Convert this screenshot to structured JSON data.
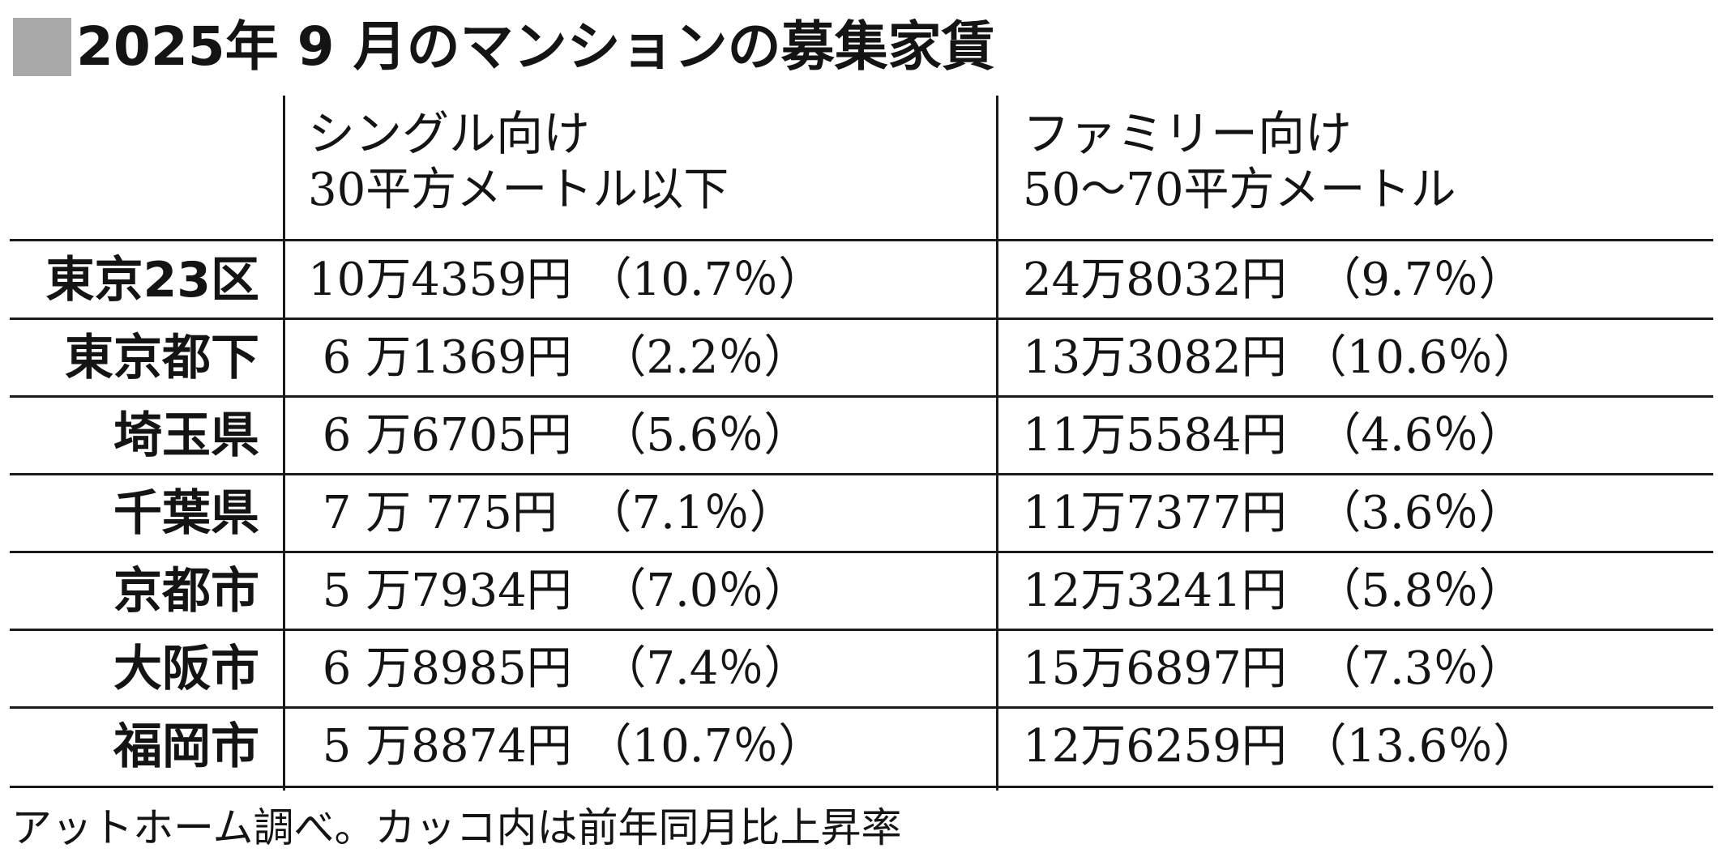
{
  "title": "2025年 9 月のマンションの募集家賃",
  "columns": [
    {
      "label": "シングル向け",
      "sub": "30平方メートル以下"
    },
    {
      "label": "ファミリー向け",
      "sub": "50〜70平方メートル"
    }
  ],
  "rows": [
    {
      "label": "東京23区",
      "single": "10万4359円 （10.7％）",
      "family": "24万8032円  （9.7％）"
    },
    {
      "label": "東京都下",
      "single": " 6 万1369円  （2.2％）",
      "family": "13万3082円 （10.6％）"
    },
    {
      "label": "埼玉県",
      "single": " 6 万6705円  （5.6％）",
      "family": "11万5584円  （4.6％）"
    },
    {
      "label": "千葉県",
      "single": " 7 万 775円  （7.1％）",
      "family": "11万7377円  （3.6％）"
    },
    {
      "label": "京都市",
      "single": " 5 万7934円  （7.0％）",
      "family": "12万3241円  （5.8％）"
    },
    {
      "label": "大阪市",
      "single": " 6 万8985円  （7.4％）",
      "family": "15万6897円  （7.3％）"
    },
    {
      "label": "福岡市",
      "single": " 5 万8874円 （10.7％）",
      "family": "12万6259円 （13.6％）"
    }
  ],
  "footnote": "アットホーム調べ。カッコ内は前年同月比上昇率"
}
